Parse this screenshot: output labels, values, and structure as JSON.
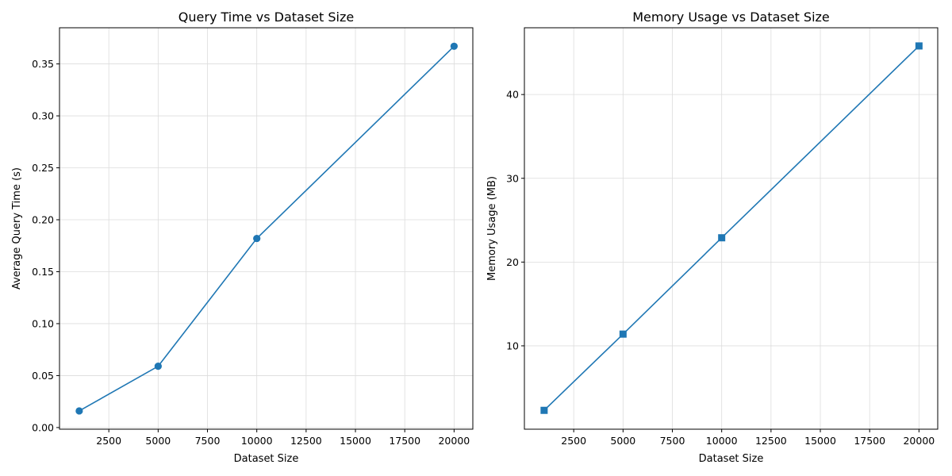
{
  "chart_data": [
    {
      "type": "line",
      "title": "Query Time vs Dataset Size",
      "xlabel": "Dataset Size",
      "ylabel": "Average Query Time (s)",
      "xlim": [
        0,
        20950
      ],
      "ylim": [
        -0.0016,
        0.3848
      ],
      "xticks": [
        2500,
        5000,
        7500,
        10000,
        12500,
        15000,
        17500,
        20000
      ],
      "yticks": [
        0.0,
        0.05,
        0.1,
        0.15,
        0.2,
        0.25,
        0.3,
        0.35
      ],
      "ytick_labels": [
        "0.00",
        "0.05",
        "0.10",
        "0.15",
        "0.20",
        "0.25",
        "0.30",
        "0.35"
      ],
      "grid": true,
      "marker": "circle",
      "color": "#1f77b4",
      "series": [
        {
          "x": [
            1000,
            5000,
            10000,
            20000
          ],
          "y": [
            0.016,
            0.059,
            0.182,
            0.367
          ]
        }
      ]
    },
    {
      "type": "line",
      "title": "Memory Usage vs Dataset Size",
      "xlabel": "Dataset Size",
      "ylabel": "Memory Usage (MB)",
      "xlim": [
        0,
        20950
      ],
      "ylim": [
        0.05,
        47.97
      ],
      "xticks": [
        2500,
        5000,
        7500,
        10000,
        12500,
        15000,
        17500,
        20000
      ],
      "yticks": [
        10,
        20,
        30,
        40
      ],
      "ytick_labels": [
        "10",
        "20",
        "30",
        "40"
      ],
      "grid": true,
      "marker": "square",
      "color": "#1f77b4",
      "series": [
        {
          "x": [
            1000,
            5000,
            10000,
            20000
          ],
          "y": [
            2.3,
            11.4,
            22.9,
            45.8
          ]
        }
      ]
    }
  ]
}
